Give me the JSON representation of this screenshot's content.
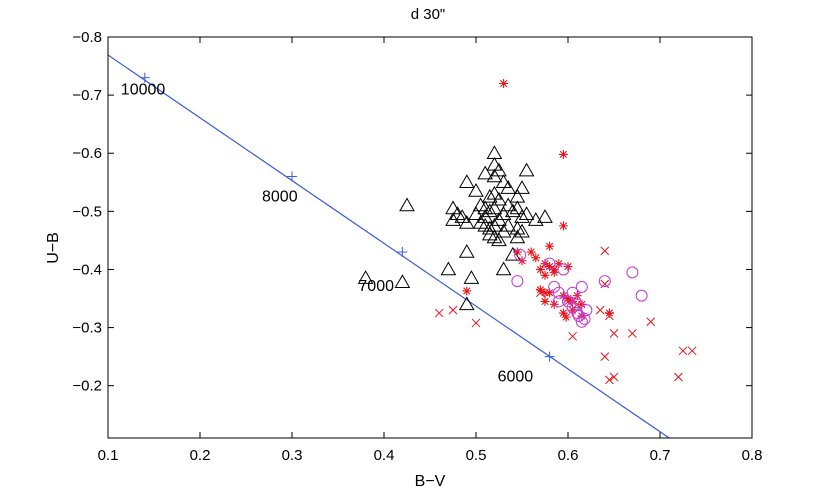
{
  "chart_data": {
    "type": "scatter",
    "title": "d 30\"",
    "xlabel": "B−V",
    "ylabel": "U−B",
    "xlim": [
      0.1,
      0.8
    ],
    "ylim": [
      -0.8,
      -0.11
    ],
    "y_reversed": true,
    "x_ticks": [
      0.1,
      0.2,
      0.3,
      0.4,
      0.5,
      0.6,
      0.7,
      0.8
    ],
    "x_tick_labels": [
      "0.1",
      "0.2",
      "0.3",
      "0.4",
      "0.5",
      "0.6",
      "0.7",
      "0.8"
    ],
    "y_ticks": [
      -0.8,
      -0.7,
      -0.6,
      -0.5,
      -0.4,
      -0.3,
      -0.2
    ],
    "y_tick_labels": [
      "−0.8",
      "−0.7",
      "−0.6",
      "−0.5",
      "−0.4",
      "−0.3",
      "−0.2"
    ],
    "colors": {
      "line": "#3b5bdb",
      "triangle": "#000000",
      "star": "#e8151b",
      "cross": "#e8151b",
      "circle": "#c13ad6"
    },
    "blackbody_line": {
      "name": "blackbody",
      "points": [
        [
          0.1,
          -0.769
        ],
        [
          0.71,
          -0.11
        ]
      ],
      "temperature_marks": [
        {
          "x": 0.14,
          "y": -0.73,
          "label": "10000"
        },
        {
          "x": 0.3,
          "y": -0.56,
          "label": "8000"
        },
        {
          "x": 0.42,
          "y": -0.43,
          "label": "7000"
        },
        {
          "x": 0.58,
          "y": -0.25,
          "label": "6000"
        }
      ]
    },
    "series": [
      {
        "name": "triangles",
        "marker": "triangle",
        "points": [
          [
            0.52,
            -0.6
          ],
          [
            0.52,
            -0.58
          ],
          [
            0.52,
            -0.56
          ],
          [
            0.51,
            -0.565
          ],
          [
            0.525,
            -0.57
          ],
          [
            0.49,
            -0.55
          ],
          [
            0.53,
            -0.55
          ],
          [
            0.535,
            -0.54
          ],
          [
            0.555,
            -0.57
          ],
          [
            0.5,
            -0.535
          ],
          [
            0.515,
            -0.525
          ],
          [
            0.52,
            -0.53
          ],
          [
            0.525,
            -0.52
          ],
          [
            0.545,
            -0.525
          ],
          [
            0.55,
            -0.54
          ],
          [
            0.505,
            -0.51
          ],
          [
            0.51,
            -0.505
          ],
          [
            0.515,
            -0.5
          ],
          [
            0.52,
            -0.505
          ],
          [
            0.5,
            -0.495
          ],
          [
            0.53,
            -0.495
          ],
          [
            0.535,
            -0.51
          ],
          [
            0.54,
            -0.5
          ],
          [
            0.545,
            -0.505
          ],
          [
            0.475,
            -0.505
          ],
          [
            0.48,
            -0.495
          ],
          [
            0.485,
            -0.49
          ],
          [
            0.51,
            -0.49
          ],
          [
            0.525,
            -0.485
          ],
          [
            0.475,
            -0.485
          ],
          [
            0.49,
            -0.48
          ],
          [
            0.505,
            -0.48
          ],
          [
            0.51,
            -0.475
          ],
          [
            0.515,
            -0.47
          ],
          [
            0.52,
            -0.475
          ],
          [
            0.535,
            -0.475
          ],
          [
            0.545,
            -0.47
          ],
          [
            0.55,
            -0.49
          ],
          [
            0.555,
            -0.495
          ],
          [
            0.565,
            -0.485
          ],
          [
            0.575,
            -0.49
          ],
          [
            0.515,
            -0.46
          ],
          [
            0.52,
            -0.455
          ],
          [
            0.53,
            -0.465
          ],
          [
            0.545,
            -0.455
          ],
          [
            0.55,
            -0.465
          ],
          [
            0.525,
            -0.45
          ],
          [
            0.425,
            -0.51
          ],
          [
            0.47,
            -0.4
          ],
          [
            0.49,
            -0.43
          ],
          [
            0.495,
            -0.385
          ],
          [
            0.53,
            -0.4
          ],
          [
            0.54,
            -0.425
          ],
          [
            0.38,
            -0.385
          ],
          [
            0.42,
            -0.378
          ],
          [
            0.49,
            -0.34
          ]
        ]
      },
      {
        "name": "stars",
        "marker": "star",
        "points": [
          [
            0.53,
            -0.72
          ],
          [
            0.595,
            -0.598
          ],
          [
            0.595,
            -0.475
          ],
          [
            0.58,
            -0.44
          ],
          [
            0.56,
            -0.43
          ],
          [
            0.545,
            -0.43
          ],
          [
            0.55,
            -0.415
          ],
          [
            0.565,
            -0.42
          ],
          [
            0.575,
            -0.41
          ],
          [
            0.58,
            -0.405
          ],
          [
            0.585,
            -0.4
          ],
          [
            0.59,
            -0.41
          ],
          [
            0.6,
            -0.405
          ],
          [
            0.57,
            -0.4
          ],
          [
            0.575,
            -0.39
          ],
          [
            0.585,
            -0.395
          ],
          [
            0.57,
            -0.365
          ],
          [
            0.58,
            -0.36
          ],
          [
            0.595,
            -0.355
          ],
          [
            0.6,
            -0.35
          ],
          [
            0.605,
            -0.345
          ],
          [
            0.61,
            -0.355
          ],
          [
            0.575,
            -0.345
          ],
          [
            0.585,
            -0.34
          ],
          [
            0.595,
            -0.325
          ],
          [
            0.598,
            -0.318
          ],
          [
            0.605,
            -0.33
          ],
          [
            0.615,
            -0.34
          ],
          [
            0.575,
            -0.36
          ],
          [
            0.49,
            -0.363
          ],
          [
            0.615,
            -0.32
          ],
          [
            0.645,
            -0.325
          ]
        ]
      },
      {
        "name": "crosses",
        "marker": "cross",
        "points": [
          [
            0.64,
            -0.432
          ],
          [
            0.64,
            -0.375
          ],
          [
            0.635,
            -0.33
          ],
          [
            0.645,
            -0.32
          ],
          [
            0.65,
            -0.29
          ],
          [
            0.67,
            -0.29
          ],
          [
            0.69,
            -0.31
          ],
          [
            0.64,
            -0.25
          ],
          [
            0.645,
            -0.21
          ],
          [
            0.65,
            -0.215
          ],
          [
            0.72,
            -0.215
          ],
          [
            0.725,
            -0.26
          ],
          [
            0.735,
            -0.26
          ],
          [
            0.46,
            -0.325
          ],
          [
            0.475,
            -0.33
          ],
          [
            0.5,
            -0.308
          ],
          [
            0.605,
            -0.285
          ],
          [
            0.6,
            -0.345
          ],
          [
            0.61,
            -0.34
          ],
          [
            0.57,
            -0.36
          ]
        ]
      },
      {
        "name": "circles",
        "marker": "circle",
        "points": [
          [
            0.545,
            -0.38
          ],
          [
            0.548,
            -0.425
          ],
          [
            0.58,
            -0.41
          ],
          [
            0.585,
            -0.37
          ],
          [
            0.59,
            -0.36
          ],
          [
            0.595,
            -0.4
          ],
          [
            0.59,
            -0.345
          ],
          [
            0.6,
            -0.345
          ],
          [
            0.605,
            -0.335
          ],
          [
            0.61,
            -0.325
          ],
          [
            0.612,
            -0.32
          ],
          [
            0.615,
            -0.31
          ],
          [
            0.618,
            -0.315
          ],
          [
            0.62,
            -0.33
          ],
          [
            0.615,
            -0.37
          ],
          [
            0.64,
            -0.38
          ],
          [
            0.67,
            -0.395
          ],
          [
            0.68,
            -0.355
          ],
          [
            0.605,
            -0.36
          ],
          [
            0.61,
            -0.34
          ]
        ]
      }
    ]
  }
}
